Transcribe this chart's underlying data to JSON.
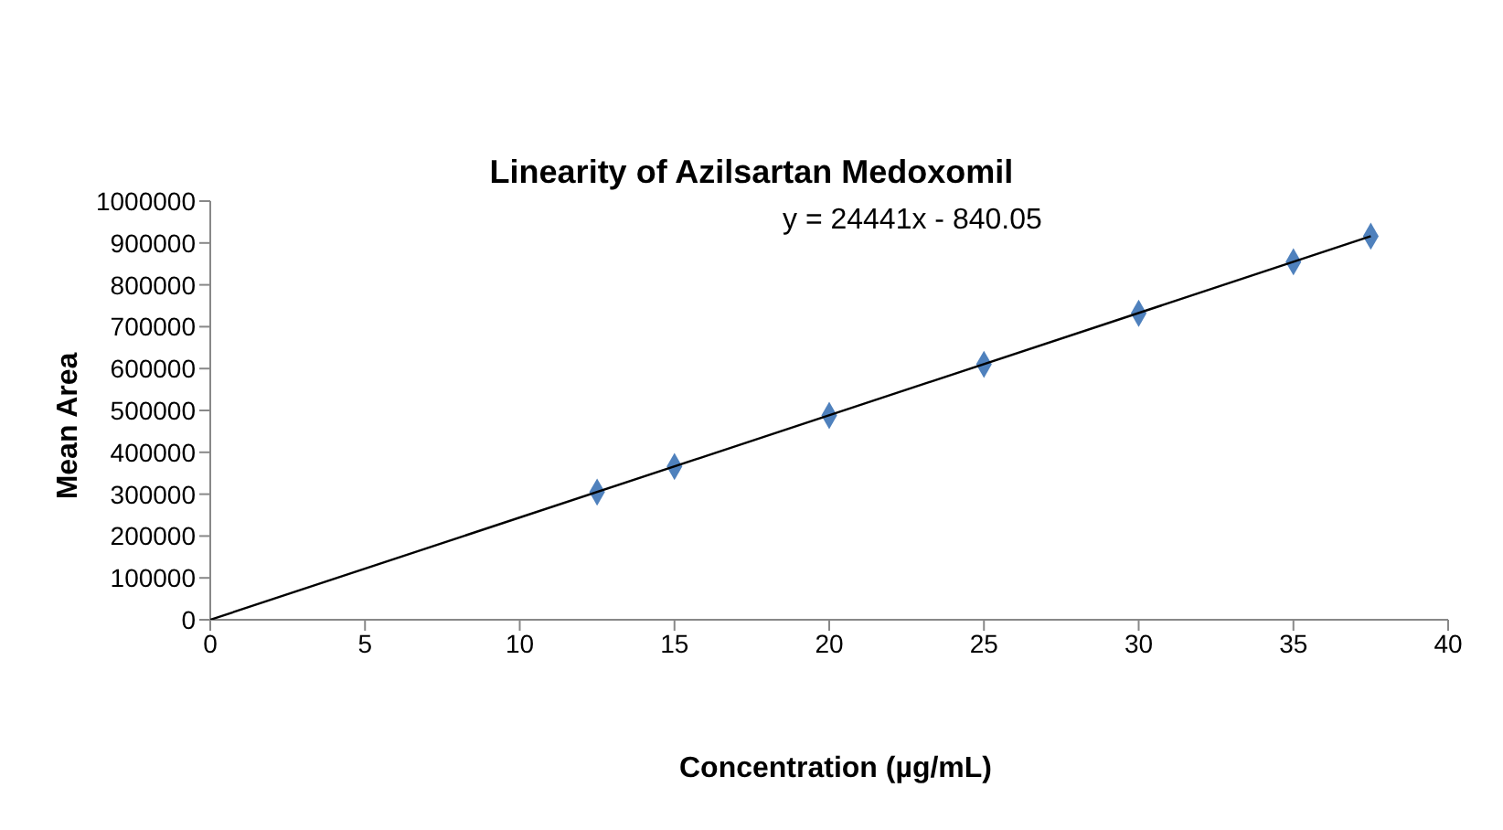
{
  "chart_data": {
    "type": "scatter",
    "title": "Linearity of Azilsartan Medoxomil",
    "xlabel": "Concentration (µg/mL)",
    "ylabel": "Mean Area",
    "marker": "diamond",
    "series": [
      {
        "color": "#4f81bd",
        "x": [
          12.5,
          15,
          20,
          25,
          30,
          35,
          37.5
        ],
        "values": [
          305000,
          366000,
          488000,
          610000,
          732000,
          855000,
          916000
        ]
      },
      {
        "type": "line",
        "color": "#000000",
        "marker": "none",
        "x": [
          0,
          37.5
        ],
        "values": [
          0,
          916000
        ]
      }
    ],
    "xlim": [
      0,
      40
    ],
    "xticks": [
      0,
      5,
      10,
      15,
      20,
      25,
      30,
      35,
      40
    ],
    "ylim": [
      0,
      1000000
    ],
    "yticks": [
      0,
      100000,
      200000,
      300000,
      400000,
      500000,
      600000,
      700000,
      800000,
      900000,
      1000000
    ],
    "annotations": [
      "y = 24441x - 840.05"
    ]
  }
}
